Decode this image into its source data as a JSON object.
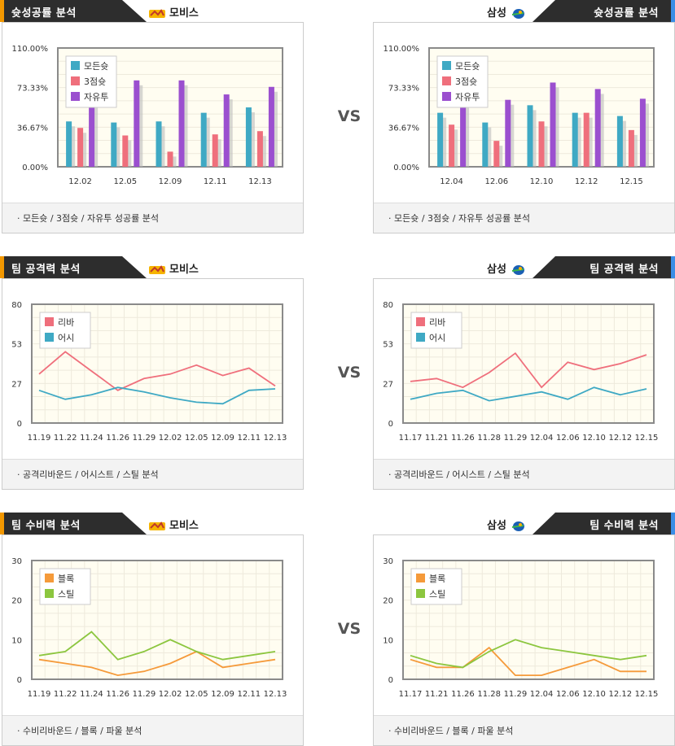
{
  "colors": {
    "mo": "#3fa9c4",
    "three": "#ef6f7c",
    "free": "#9b4fcf",
    "reb": "#ef6f7c",
    "ast": "#3fa9c4",
    "blk": "#f59a3a",
    "stl": "#8cc63f"
  },
  "vs_label": "VS",
  "sections": [
    {
      "title": "슛성공률 분석",
      "left": {
        "team": "모비스",
        "logo": "mobis-logo-icon",
        "footer": "· 모든슛 / 3점슛 / 자유투 성공률 분석"
      },
      "right": {
        "team": "삼성",
        "logo": "samsung-logo-icon",
        "footer": "· 모든슛 / 3점슛 / 자유투 성공률 분석"
      }
    },
    {
      "title": "팀 공격력 분석",
      "left": {
        "team": "모비스",
        "logo": "mobis-logo-icon",
        "footer": "· 공격리바운드 / 어시스트 / 스틸 분석"
      },
      "right": {
        "team": "삼성",
        "logo": "samsung-logo-icon",
        "footer": "· 공격리바운드 / 어시스트 / 스틸 분석"
      }
    },
    {
      "title": "팀 수비력 분석",
      "left": {
        "team": "모비스",
        "logo": "mobis-logo-icon",
        "footer": "· 수비리바운드 / 블록 / 파울 분석"
      },
      "right": {
        "team": "삼성",
        "logo": "samsung-logo-icon",
        "footer": "· 수비리바운드 / 블록 / 파울 분석"
      }
    }
  ],
  "chart_data": [
    {
      "id": "shoot-mobis",
      "type": "bar",
      "categories": [
        "12.02",
        "12.05",
        "12.09",
        "12.11",
        "12.13"
      ],
      "yticks": [
        "0.00%",
        "36.67%",
        "73.33%",
        "110.00%"
      ],
      "ylim": [
        0,
        110
      ],
      "legend_position": "top-left",
      "series": [
        {
          "name": "모든슛",
          "color_key": "mo",
          "values": [
            42,
            41,
            42,
            50,
            55
          ]
        },
        {
          "name": "3점슛",
          "color_key": "three",
          "values": [
            36,
            29,
            14,
            30,
            33
          ]
        },
        {
          "name": "자유투",
          "color_key": "free",
          "values": [
            90,
            80,
            80,
            67,
            74
          ]
        }
      ]
    },
    {
      "id": "shoot-samsung",
      "type": "bar",
      "categories": [
        "12.04",
        "12.06",
        "12.10",
        "12.12",
        "12.15"
      ],
      "yticks": [
        "0.00%",
        "36.67%",
        "73.33%",
        "110.00%"
      ],
      "ylim": [
        0,
        110
      ],
      "legend_position": "top-left",
      "series": [
        {
          "name": "모든슛",
          "color_key": "mo",
          "values": [
            50,
            41,
            57,
            50,
            47
          ]
        },
        {
          "name": "3점슛",
          "color_key": "three",
          "values": [
            39,
            24,
            42,
            50,
            34
          ]
        },
        {
          "name": "자유투",
          "color_key": "free",
          "values": [
            62,
            62,
            78,
            72,
            63
          ]
        }
      ]
    },
    {
      "id": "offense-mobis",
      "type": "line",
      "categories": [
        "11.19",
        "11.22",
        "11.24",
        "11.26",
        "11.29",
        "12.02",
        "12.05",
        "12.09",
        "12.11",
        "12.13"
      ],
      "yticks": [
        "0",
        "27",
        "53",
        "80"
      ],
      "ylim": [
        0,
        80
      ],
      "legend_position": "top-left",
      "series": [
        {
          "name": "리바",
          "color_key": "reb",
          "values": [
            33,
            48,
            35,
            22,
            30,
            33,
            39,
            32,
            37,
            25
          ]
        },
        {
          "name": "어시",
          "color_key": "ast",
          "values": [
            22,
            16,
            19,
            24,
            21,
            17,
            14,
            13,
            22,
            23
          ]
        }
      ]
    },
    {
      "id": "offense-samsung",
      "type": "line",
      "categories": [
        "11.17",
        "11.21",
        "11.26",
        "11.28",
        "11.29",
        "12.04",
        "12.06",
        "12.10",
        "12.12",
        "12.15"
      ],
      "yticks": [
        "0",
        "27",
        "53",
        "80"
      ],
      "ylim": [
        0,
        80
      ],
      "legend_position": "top-left",
      "series": [
        {
          "name": "리바",
          "color_key": "reb",
          "values": [
            28,
            30,
            24,
            34,
            47,
            24,
            41,
            36,
            40,
            46
          ]
        },
        {
          "name": "어시",
          "color_key": "ast",
          "values": [
            16,
            20,
            22,
            15,
            18,
            21,
            16,
            24,
            19,
            23
          ]
        }
      ]
    },
    {
      "id": "defense-mobis",
      "type": "line",
      "categories": [
        "11.19",
        "11.22",
        "11.24",
        "11.26",
        "11.29",
        "12.02",
        "12.05",
        "12.09",
        "12.11",
        "12.13"
      ],
      "yticks": [
        "0",
        "10",
        "20",
        "30"
      ],
      "ylim": [
        0,
        30
      ],
      "legend_position": "top-left",
      "series": [
        {
          "name": "블록",
          "color_key": "blk",
          "values": [
            5,
            4,
            3,
            1,
            2,
            4,
            7,
            3,
            4,
            5
          ]
        },
        {
          "name": "스틸",
          "color_key": "stl",
          "values": [
            6,
            7,
            12,
            5,
            7,
            10,
            7,
            5,
            6,
            7
          ]
        }
      ]
    },
    {
      "id": "defense-samsung",
      "type": "line",
      "categories": [
        "11.17",
        "11.21",
        "11.26",
        "11.28",
        "11.29",
        "12.04",
        "12.06",
        "12.10",
        "12.12",
        "12.15"
      ],
      "yticks": [
        "0",
        "10",
        "20",
        "30"
      ],
      "ylim": [
        0,
        30
      ],
      "legend_position": "top-left",
      "series": [
        {
          "name": "블록",
          "color_key": "blk",
          "values": [
            5,
            3,
            3,
            8,
            1,
            1,
            3,
            5,
            2,
            2
          ]
        },
        {
          "name": "스틸",
          "color_key": "stl",
          "values": [
            6,
            4,
            3,
            7,
            10,
            8,
            7,
            6,
            5,
            6
          ]
        }
      ]
    }
  ]
}
